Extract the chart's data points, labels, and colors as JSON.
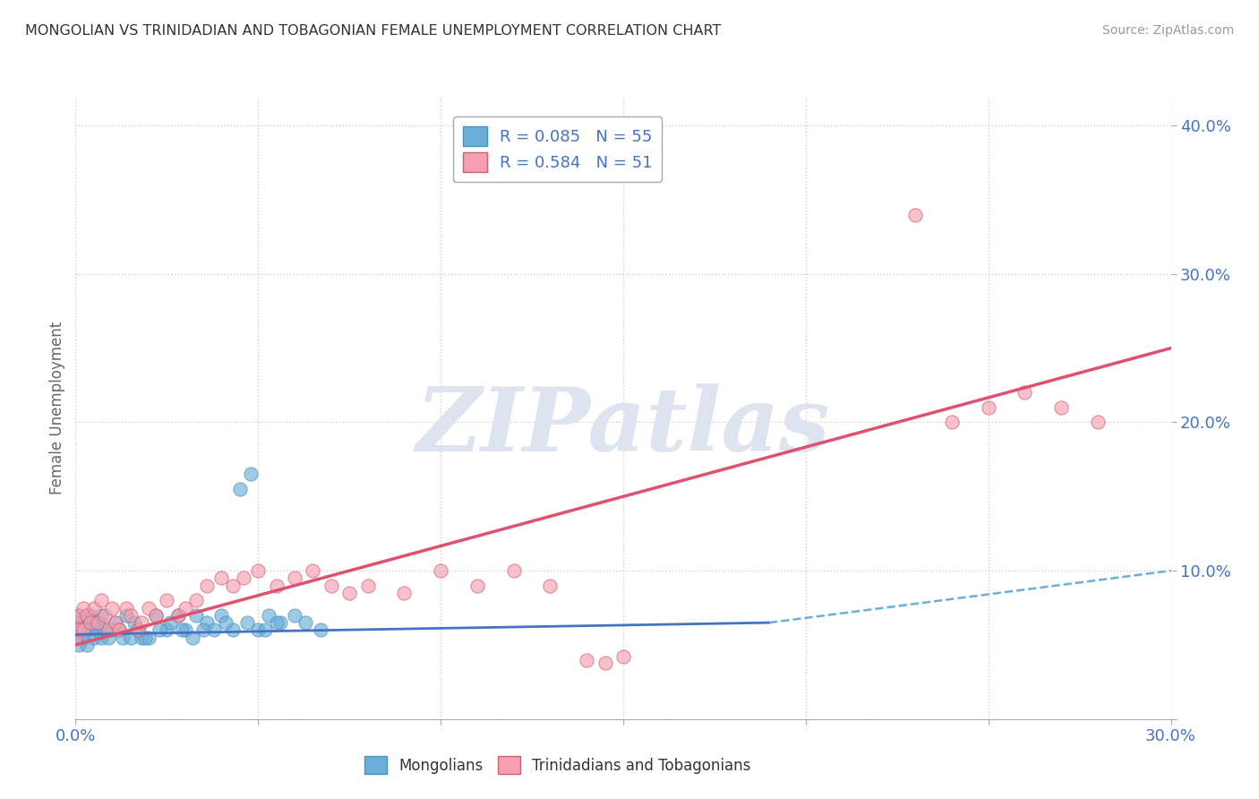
{
  "title": "MONGOLIAN VS TRINIDADIAN AND TOBAGONIAN FEMALE UNEMPLOYMENT CORRELATION CHART",
  "source": "Source: ZipAtlas.com",
  "ylabel": "Female Unemployment",
  "xlim": [
    0.0,
    0.3
  ],
  "ylim": [
    0.0,
    0.42
  ],
  "color_mongolian": "#6baed6",
  "color_mongolian_edge": "#4393c3",
  "color_trinidadian": "#f4a0b0",
  "color_trinidadian_edge": "#d06070",
  "color_trend_mongolian_solid": "#4472c4",
  "color_trend_mongolian_dash": "#6baed6",
  "color_trend_trinidadian": "#e05070",
  "color_axis_labels": "#4472c4",
  "color_grid": "#cccccc",
  "watermark_text": "ZIPatlas",
  "watermark_color": "#dde4f0",
  "legend_label1": "R = 0.085   N = 55",
  "legend_label2": "R = 0.584   N = 51",
  "bottom_label1": "Mongolians",
  "bottom_label2": "Trinidadians and Tobagonians",
  "mong_x": [
    0.0,
    0.0,
    0.001,
    0.001,
    0.001,
    0.002,
    0.002,
    0.003,
    0.003,
    0.004,
    0.004,
    0.005,
    0.005,
    0.006,
    0.007,
    0.007,
    0.008,
    0.009,
    0.01,
    0.011,
    0.012,
    0.013,
    0.014,
    0.015,
    0.016,
    0.017,
    0.018,
    0.02,
    0.022,
    0.025,
    0.028,
    0.03,
    0.033,
    0.036,
    0.04,
    0.043,
    0.047,
    0.05,
    0.053,
    0.056,
    0.06,
    0.063,
    0.067,
    0.045,
    0.048,
    0.052,
    0.055,
    0.038,
    0.041,
    0.035,
    0.032,
    0.029,
    0.026,
    0.023,
    0.019
  ],
  "mong_y": [
    0.055,
    0.06,
    0.05,
    0.065,
    0.07,
    0.055,
    0.06,
    0.065,
    0.05,
    0.06,
    0.07,
    0.055,
    0.065,
    0.06,
    0.07,
    0.055,
    0.06,
    0.055,
    0.06,
    0.065,
    0.06,
    0.055,
    0.07,
    0.055,
    0.065,
    0.06,
    0.055,
    0.055,
    0.07,
    0.06,
    0.07,
    0.06,
    0.07,
    0.065,
    0.07,
    0.06,
    0.065,
    0.06,
    0.07,
    0.065,
    0.07,
    0.065,
    0.06,
    0.155,
    0.165,
    0.06,
    0.065,
    0.06,
    0.065,
    0.06,
    0.055,
    0.06,
    0.065,
    0.06,
    0.055
  ],
  "trin_x": [
    0.0,
    0.0,
    0.001,
    0.001,
    0.002,
    0.002,
    0.003,
    0.004,
    0.005,
    0.006,
    0.007,
    0.008,
    0.009,
    0.01,
    0.011,
    0.012,
    0.014,
    0.015,
    0.017,
    0.018,
    0.02,
    0.022,
    0.025,
    0.028,
    0.03,
    0.033,
    0.036,
    0.04,
    0.043,
    0.046,
    0.05,
    0.055,
    0.06,
    0.065,
    0.07,
    0.075,
    0.08,
    0.09,
    0.1,
    0.11,
    0.12,
    0.13,
    0.14,
    0.145,
    0.15,
    0.23,
    0.24,
    0.25,
    0.26,
    0.27,
    0.28
  ],
  "trin_y": [
    0.055,
    0.065,
    0.06,
    0.07,
    0.06,
    0.075,
    0.07,
    0.065,
    0.075,
    0.065,
    0.08,
    0.07,
    0.06,
    0.075,
    0.065,
    0.06,
    0.075,
    0.07,
    0.06,
    0.065,
    0.075,
    0.07,
    0.08,
    0.07,
    0.075,
    0.08,
    0.09,
    0.095,
    0.09,
    0.095,
    0.1,
    0.09,
    0.095,
    0.1,
    0.09,
    0.085,
    0.09,
    0.085,
    0.1,
    0.09,
    0.1,
    0.09,
    0.04,
    0.038,
    0.042,
    0.34,
    0.2,
    0.21,
    0.22,
    0.21,
    0.2
  ],
  "mong_trend_x0": 0.0,
  "mong_trend_x_solid_end": 0.19,
  "mong_trend_x_end": 0.3,
  "mong_trend_y0": 0.057,
  "mong_trend_y_solid_end": 0.065,
  "mong_trend_y_end": 0.1,
  "trin_trend_x0": 0.0,
  "trin_trend_x_end": 0.3,
  "trin_trend_y0": 0.05,
  "trin_trend_y_end": 0.25
}
